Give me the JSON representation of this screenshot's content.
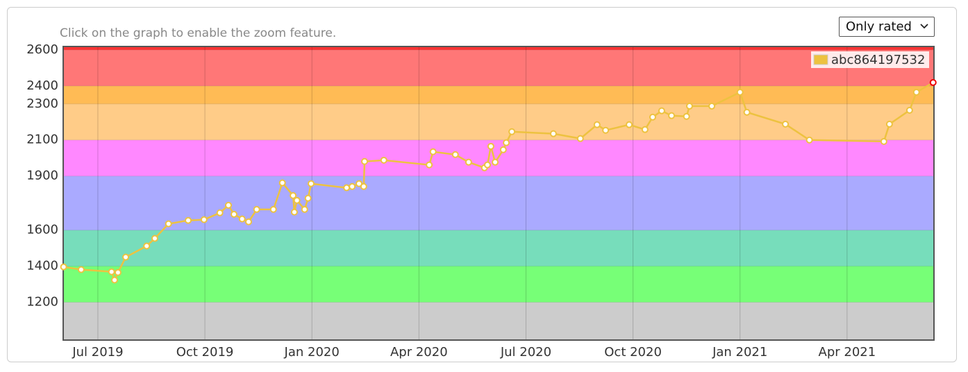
{
  "hint": "Click on the graph to enable the zoom feature.",
  "filter": {
    "selected": "Only rated"
  },
  "chart_data": {
    "type": "line",
    "xlim": [
      2019.419,
      2021.453
    ],
    "xticks": [
      {
        "value": 2019.5,
        "label": "Jul 2019"
      },
      {
        "value": 2019.75,
        "label": "Oct 2019"
      },
      {
        "value": 2020.0,
        "label": "Jan 2020"
      },
      {
        "value": 2020.25,
        "label": "Apr 2020"
      },
      {
        "value": 2020.5,
        "label": "Jul 2020"
      },
      {
        "value": 2020.75,
        "label": "Oct 2020"
      },
      {
        "value": 2021.0,
        "label": "Jan 2021"
      },
      {
        "value": 2021.25,
        "label": "Apr 2021"
      }
    ],
    "ylim": [
      990,
      2615
    ],
    "yticks": [
      1200,
      1400,
      1600,
      1900,
      2100,
      2300,
      2400,
      2600
    ],
    "base_color": "#cccccc",
    "bands": [
      {
        "from": 1200,
        "color": "#77ff77"
      },
      {
        "from": 1400,
        "color": "#77ddbb"
      },
      {
        "from": 1600,
        "color": "#aaaaff"
      },
      {
        "from": 1900,
        "color": "#ff88ff"
      },
      {
        "from": 2100,
        "color": "#ffcc88"
      },
      {
        "from": 2300,
        "color": "#ffbb55"
      },
      {
        "from": 2400,
        "color": "#ff7777"
      },
      {
        "from": 2600,
        "color": "#ff3333"
      }
    ],
    "grid": true,
    "legend": "top-right",
    "series": [
      {
        "name": "abc864197532",
        "color": "#edc240",
        "x": [
          2019.42,
          2019.461,
          2019.532,
          2019.539,
          2019.547,
          2019.565,
          2019.614,
          2019.633,
          2019.665,
          2019.711,
          2019.748,
          2019.785,
          2019.805,
          2019.818,
          2019.837,
          2019.852,
          2019.871,
          2019.91,
          2019.931,
          2019.956,
          2019.959,
          2019.965,
          2019.983,
          2019.991,
          2019.998,
          2020.081,
          2020.094,
          2020.11,
          2020.121,
          2020.123,
          2020.168,
          2020.274,
          2020.283,
          2020.335,
          2020.366,
          2020.403,
          2020.41,
          2020.418,
          2020.428,
          2020.447,
          2020.454,
          2020.467,
          2020.564,
          2020.627,
          2020.666,
          2020.686,
          2020.741,
          2020.778,
          2020.796,
          2020.817,
          2020.84,
          2020.875,
          2020.882,
          2020.934,
          2021.0,
          2021.016,
          2021.106,
          2021.162,
          2021.336,
          2021.349,
          2021.396,
          2021.412,
          2021.451
        ],
        "values": [
          1396,
          1381,
          1369,
          1323,
          1365,
          1450,
          1512,
          1554,
          1635,
          1654,
          1658,
          1696,
          1738,
          1688,
          1662,
          1646,
          1715,
          1715,
          1862,
          1792,
          1700,
          1765,
          1715,
          1777,
          1858,
          1835,
          1842,
          1858,
          1842,
          1981,
          1988,
          1962,
          2035,
          2019,
          1977,
          1946,
          1962,
          2065,
          1977,
          2046,
          2085,
          2146,
          2135,
          2108,
          2185,
          2154,
          2185,
          2158,
          2227,
          2262,
          2235,
          2231,
          2288,
          2288,
          2365,
          2254,
          2188,
          2100,
          2092,
          2188,
          2265,
          2365,
          2419
        ]
      }
    ]
  }
}
